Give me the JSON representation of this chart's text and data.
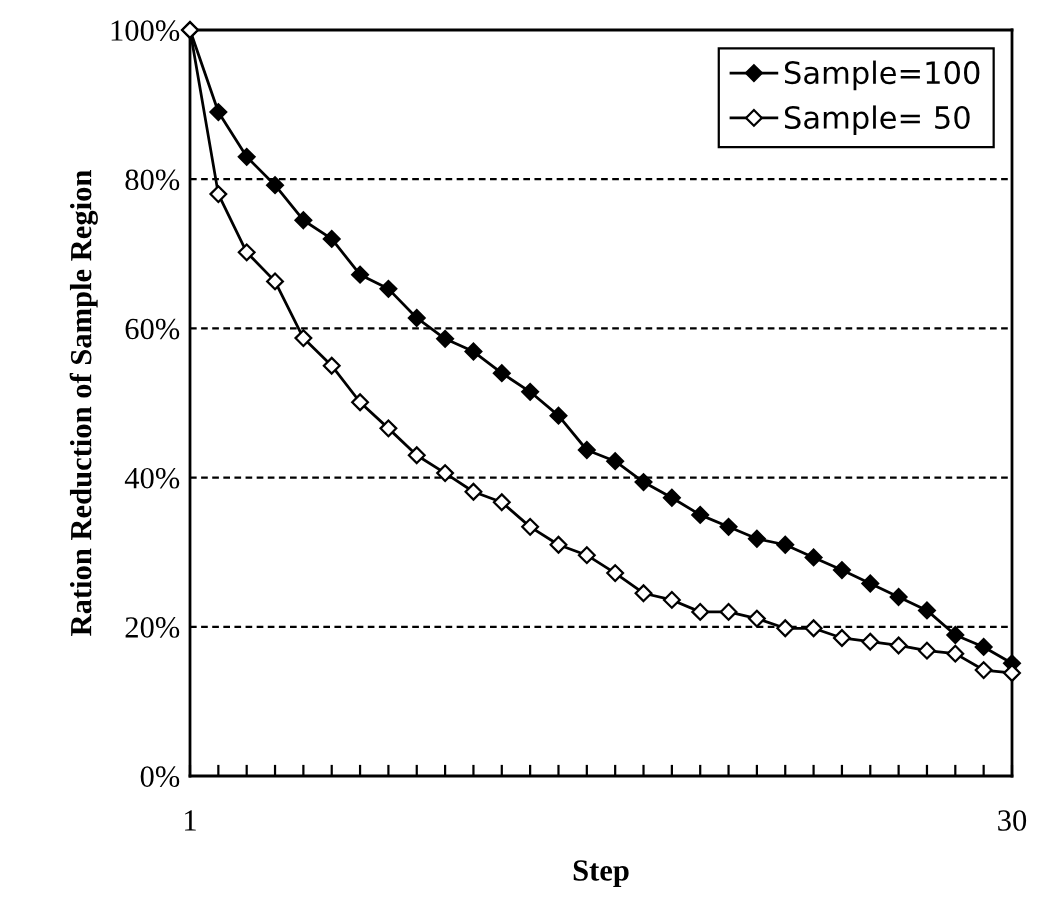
{
  "chart_data": {
    "type": "line",
    "xlabel": "Step",
    "ylabel": "Ration Reduction of Sample Region",
    "x": [
      1,
      2,
      3,
      4,
      5,
      6,
      7,
      8,
      9,
      10,
      11,
      12,
      13,
      14,
      15,
      16,
      17,
      18,
      19,
      20,
      21,
      22,
      23,
      24,
      25,
      26,
      27,
      28,
      29,
      30
    ],
    "series": [
      {
        "name": "Sample=100",
        "color": "#000000",
        "values": [
          100,
          89.0,
          83.0,
          79.2,
          74.5,
          72.0,
          67.2,
          65.3,
          61.4,
          58.6,
          56.9,
          54.0,
          51.5,
          48.3,
          43.7,
          42.2,
          39.4,
          37.3,
          35.0,
          33.4,
          31.8,
          31.0,
          29.3,
          27.6,
          25.8,
          24.0,
          22.2,
          18.9,
          17.3,
          15.1
        ]
      },
      {
        "name": "Sample= 50",
        "color": "#000000",
        "values": [
          100,
          78.0,
          70.2,
          66.3,
          58.7,
          55.0,
          50.1,
          46.6,
          43.0,
          40.6,
          38.1,
          36.7,
          33.4,
          31.0,
          29.6,
          27.2,
          24.5,
          23.6,
          22.0,
          22.0,
          21.1,
          19.8,
          19.8,
          18.5,
          18.0,
          17.5,
          16.8,
          16.4,
          14.2,
          13.8
        ]
      }
    ],
    "xlim": [
      1,
      30
    ],
    "xticks": [
      1,
      {
        "value": 2,
        "label": null
      },
      {
        "value": 3,
        "label": null
      },
      {
        "value": 4,
        "label": null
      },
      {
        "value": 5,
        "label": null
      },
      {
        "value": 6,
        "label": null
      },
      {
        "value": 7,
        "label": null
      },
      {
        "value": 8,
        "label": null
      },
      {
        "value": 9,
        "label": null
      },
      {
        "value": 10,
        "label": null
      },
      {
        "value": 11,
        "label": null
      },
      {
        "value": 12,
        "label": null
      },
      {
        "value": 13,
        "label": null
      },
      {
        "value": 14,
        "label": null
      },
      {
        "value": 15,
        "label": null
      },
      {
        "value": 16,
        "label": null
      },
      {
        "value": 17,
        "label": null
      },
      {
        "value": 18,
        "label": null
      },
      {
        "value": 19,
        "label": null
      },
      {
        "value": 20,
        "label": null
      },
      {
        "value": 21,
        "label": null
      },
      {
        "value": 22,
        "label": null
      },
      {
        "value": 23,
        "label": null
      },
      {
        "value": 24,
        "label": null
      },
      {
        "value": 25,
        "label": null
      },
      {
        "value": 26,
        "label": null
      },
      {
        "value": 27,
        "label": null
      },
      {
        "value": 28,
        "label": null
      },
      {
        "value": 29,
        "label": null
      },
      30
    ],
    "ylim": [
      0,
      100
    ],
    "yticks": [
      {
        "value": 0,
        "label": "0%"
      },
      {
        "value": 20,
        "label": "20%"
      },
      {
        "value": 40,
        "label": "40%"
      },
      {
        "value": 60,
        "label": "60%"
      },
      {
        "value": 80,
        "label": "80%"
      },
      {
        "value": 100,
        "label": "100%"
      }
    ],
    "grid": "y",
    "legend": "top right",
    "marker": "diamond",
    "line_style": "solid"
  }
}
